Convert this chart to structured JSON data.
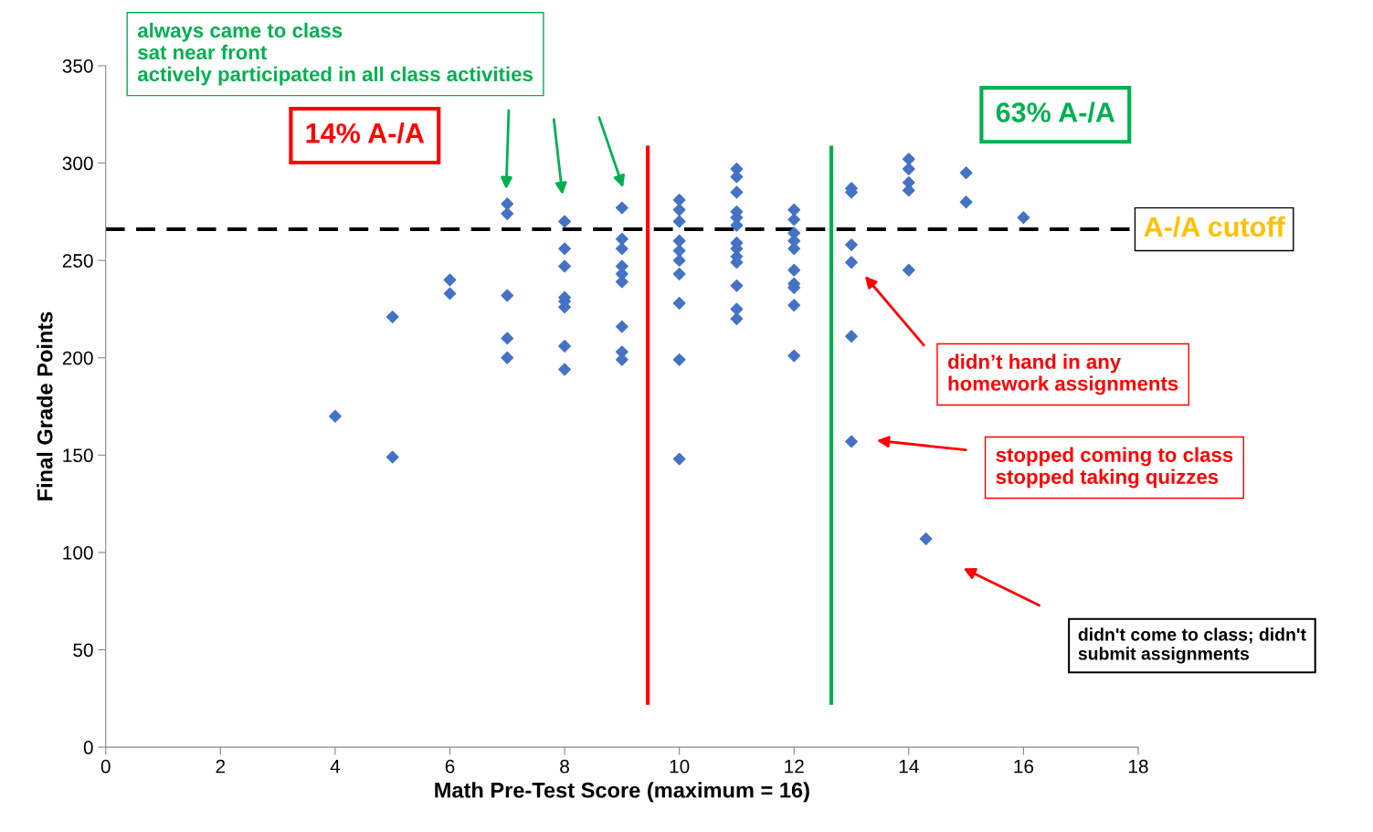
{
  "chart_data": {
    "type": "scatter",
    "xlabel": "Math Pre-Test Score (maximum = 16)",
    "ylabel": "Final Grade Points",
    "x": [
      4,
      5,
      5,
      6,
      6,
      7,
      7,
      7,
      7,
      7,
      8,
      8,
      8,
      8,
      8,
      8,
      8,
      8,
      9,
      9,
      9,
      9,
      9,
      9,
      9,
      9,
      9,
      10,
      10,
      10,
      10,
      10,
      10,
      10,
      10,
      10,
      10,
      11,
      11,
      11,
      11,
      11,
      11,
      11,
      11,
      11,
      11,
      11,
      11,
      11,
      12,
      12,
      12,
      12,
      12,
      12,
      12,
      12,
      12,
      12,
      13,
      13,
      13,
      13,
      13,
      13,
      14,
      14,
      14,
      14,
      14,
      15,
      15,
      16,
      14.3
    ],
    "series": [
      {
        "color": "#4472c4",
        "values": [
          170,
          221,
          149,
          240,
          233,
          279,
          274,
          232,
          210,
          200,
          270,
          256,
          247,
          231,
          229,
          226,
          206,
          194,
          277,
          261,
          256,
          247,
          243,
          239,
          216,
          203,
          199,
          281,
          276,
          270,
          260,
          255,
          250,
          243,
          228,
          199,
          148,
          297,
          293,
          285,
          275,
          272,
          268,
          259,
          256,
          252,
          249,
          237,
          225,
          220,
          276,
          271,
          264,
          260,
          256,
          245,
          238,
          236,
          227,
          201,
          287,
          285,
          258,
          249,
          211,
          157,
          302,
          297,
          290,
          286,
          245,
          295,
          280,
          272,
          107
        ]
      }
    ],
    "xlim": [
      0,
      18
    ],
    "xticks": [
      0,
      2,
      4,
      6,
      8,
      10,
      12,
      14,
      16,
      18
    ],
    "ylim": [
      0,
      350
    ],
    "yticks": [
      0,
      50,
      100,
      150,
      200,
      250,
      300,
      350
    ],
    "marker": "diamond",
    "grid": false,
    "legend": false,
    "ref_lines": [
      {
        "axis": "y",
        "value": 266,
        "label": "A-/A cutoff",
        "color": "#000000",
        "line_style": "dashed"
      },
      {
        "axis": "x",
        "value": 9.45,
        "color": "#ff0000",
        "line_style": "solid"
      },
      {
        "axis": "x",
        "value": 12.65,
        "color": "#00b050",
        "line_style": "solid"
      }
    ],
    "annotations": [
      "always came to class\nsat near front\nactively participated in all class activities",
      "14% A-/A",
      "63% A-/A",
      "didn’t hand in any\nhomework assignments",
      "stopped coming to class\nstopped taking quizzes",
      "didn't come to class; didn't\nsubmit assignments"
    ]
  }
}
